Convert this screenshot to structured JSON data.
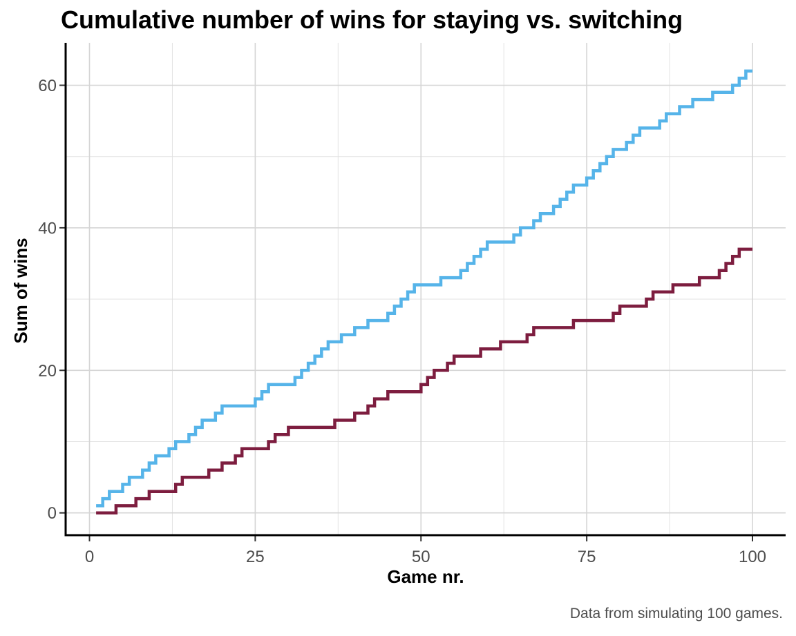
{
  "chart": {
    "title": "Cumulative number of wins for staying vs. switching",
    "x_axis": {
      "label": "Game nr."
    },
    "y_axis": {
      "label": "Sum of wins"
    },
    "caption": "Data from simulating 100 games."
  },
  "chart_data": {
    "type": "line",
    "subtype": "step",
    "title": "Cumulative number of wins for staying vs. switching",
    "xlabel": "Game nr.",
    "ylabel": "Sum of wins",
    "caption": "Data from simulating 100 games.",
    "x_note": "game number 1..100; y value is cumulative wins after that game",
    "xlim": [
      0,
      100
    ],
    "ylim": [
      0,
      62
    ],
    "x_ticks": [
      0,
      25,
      50,
      75,
      100
    ],
    "y_ticks": [
      0,
      20,
      40,
      60
    ],
    "x_minor_ticks": [
      12.5,
      37.5,
      62.5,
      87.5
    ],
    "y_minor_ticks": [
      10,
      30,
      50
    ],
    "grid": true,
    "legend": "none",
    "colors": {
      "switching_line": "#56B4E9",
      "staying_line": "#7D1D3F",
      "grid_major": "#D5D5D5",
      "grid_minor": "#E2E2E2",
      "axis_line": "#000000",
      "tick_mark": "#333333",
      "tick_label": "#4D4D4D"
    },
    "series": [
      {
        "name": "staying",
        "color": "#7D1D3F",
        "final_value": 37,
        "cumulative_wins": [
          0,
          0,
          0,
          1,
          1,
          1,
          2,
          2,
          3,
          3,
          3,
          3,
          4,
          5,
          5,
          5,
          5,
          6,
          6,
          7,
          7,
          8,
          9,
          9,
          9,
          9,
          10,
          11,
          11,
          12,
          12,
          12,
          12,
          12,
          12,
          12,
          13,
          13,
          13,
          14,
          14,
          15,
          16,
          16,
          17,
          17,
          17,
          17,
          17,
          18,
          19,
          20,
          20,
          21,
          22,
          22,
          22,
          22,
          23,
          23,
          23,
          24,
          24,
          24,
          24,
          25,
          26,
          26,
          26,
          26,
          26,
          26,
          27,
          27,
          27,
          27,
          27,
          27,
          28,
          29,
          29,
          29,
          29,
          30,
          31,
          31,
          31,
          32,
          32,
          32,
          32,
          33,
          33,
          33,
          34,
          35,
          36,
          37,
          37,
          37
        ]
      },
      {
        "name": "switching",
        "color": "#56B4E9",
        "final_value": 62,
        "cumulative_wins": [
          1,
          2,
          3,
          3,
          4,
          5,
          5,
          6,
          7,
          8,
          8,
          9,
          10,
          10,
          11,
          12,
          13,
          13,
          14,
          15,
          15,
          15,
          15,
          15,
          16,
          17,
          18,
          18,
          18,
          18,
          19,
          20,
          21,
          22,
          23,
          24,
          24,
          25,
          25,
          26,
          26,
          27,
          27,
          27,
          28,
          29,
          30,
          31,
          32,
          32,
          32,
          32,
          33,
          33,
          33,
          34,
          35,
          36,
          37,
          38,
          38,
          38,
          38,
          39,
          40,
          40,
          41,
          42,
          42,
          43,
          44,
          45,
          46,
          46,
          47,
          48,
          49,
          50,
          51,
          51,
          52,
          53,
          54,
          54,
          54,
          55,
          56,
          56,
          57,
          57,
          58,
          58,
          58,
          59,
          59,
          59,
          60,
          61,
          62,
          62
        ]
      }
    ]
  }
}
